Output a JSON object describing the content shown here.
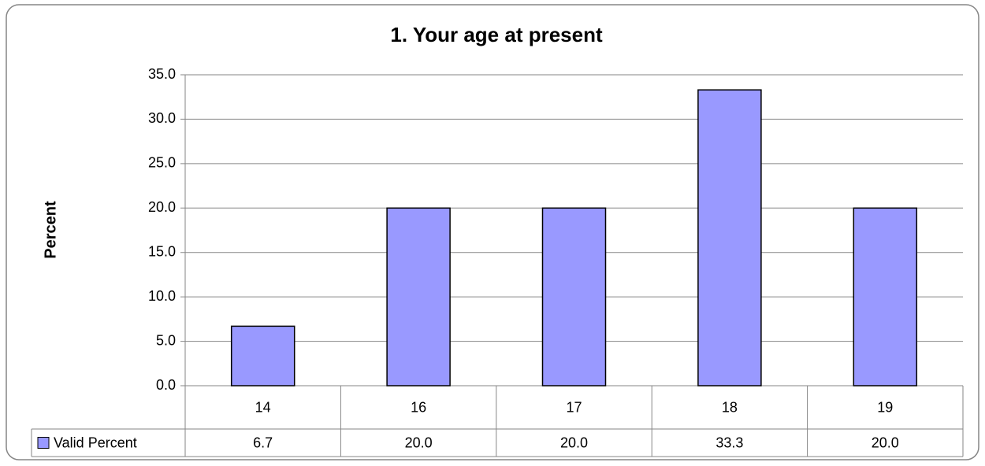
{
  "chart_data": {
    "type": "bar",
    "title": "1. Your age at present",
    "y_label": "Percent",
    "categories": [
      "14",
      "16",
      "17",
      "18",
      "19"
    ],
    "series": [
      {
        "name": "Valid Percent",
        "color": "#9999ff",
        "values": [
          6.7,
          20.0,
          20.0,
          33.3,
          20.0
        ],
        "value_labels": [
          "6.7",
          "20.0",
          "20.0",
          "33.3",
          "20.0"
        ]
      }
    ],
    "ylim": [
      0,
      35
    ],
    "yticks": [
      {
        "value": 0,
        "label": "0.0"
      },
      {
        "value": 5,
        "label": "5.0"
      },
      {
        "value": 10,
        "label": "10.0"
      },
      {
        "value": 15,
        "label": "15.0"
      },
      {
        "value": 20,
        "label": "20.0"
      },
      {
        "value": 25,
        "label": "25.0"
      },
      {
        "value": 30,
        "label": "30.0"
      },
      {
        "value": 35,
        "label": "35.0"
      }
    ],
    "grid": true
  }
}
